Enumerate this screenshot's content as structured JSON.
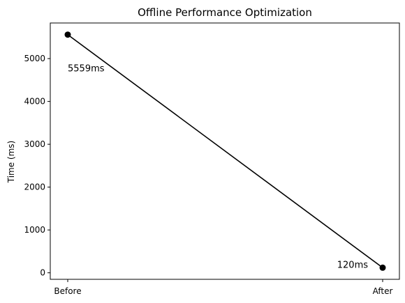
{
  "chart_data": {
    "type": "line",
    "title": "Offline Performance Optimization",
    "xlabel": "",
    "ylabel": "Time (ms)",
    "categories": [
      "Before",
      "After"
    ],
    "values": [
      5559,
      120
    ],
    "data_labels": [
      "5559ms",
      "120ms"
    ],
    "yticks": [
      0,
      1000,
      2000,
      3000,
      4000,
      5000
    ],
    "ylim": [
      -152,
      5831
    ],
    "grid": false,
    "line_color": "#000000",
    "marker_color": "#000000"
  }
}
